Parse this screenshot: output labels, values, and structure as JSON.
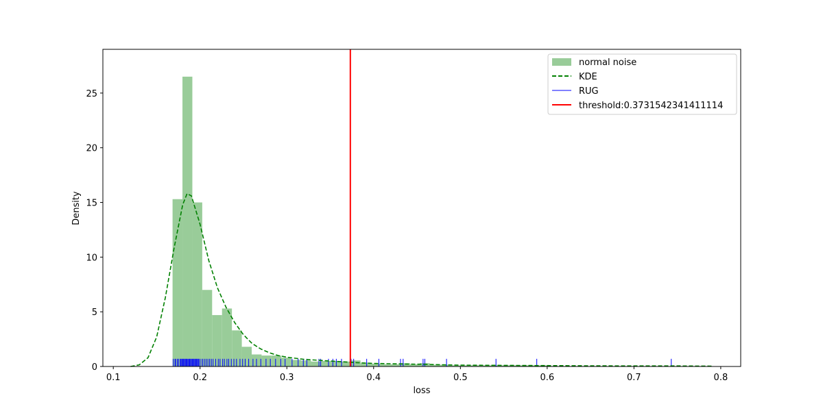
{
  "chart_data": {
    "type": "histogram",
    "xlabel": "loss",
    "ylabel": "Density",
    "xlim": [
      0.088,
      0.823
    ],
    "ylim": [
      0,
      29
    ],
    "x_ticks": [
      0.1,
      0.2,
      0.3,
      0.4,
      0.5,
      0.6,
      0.7,
      0.8
    ],
    "x_tick_labels": [
      "0.1",
      "0.2",
      "0.3",
      "0.4",
      "0.5",
      "0.6",
      "0.7",
      "0.8"
    ],
    "y_ticks": [
      0,
      5,
      10,
      15,
      20,
      25
    ],
    "y_tick_labels": [
      "0",
      "5",
      "10",
      "15",
      "20",
      "25"
    ],
    "grid": false,
    "legend_position": "upper-right",
    "histogram": {
      "name": "normal noise",
      "color": "#99cc99",
      "bin_width": 0.0114,
      "bins": [
        {
          "x0": 0.1683,
          "height": 15.3
        },
        {
          "x0": 0.1797,
          "height": 26.5
        },
        {
          "x0": 0.1911,
          "height": 15.0
        },
        {
          "x0": 0.2025,
          "height": 7.0
        },
        {
          "x0": 0.2139,
          "height": 4.7
        },
        {
          "x0": 0.2253,
          "height": 5.3
        },
        {
          "x0": 0.2367,
          "height": 3.3
        },
        {
          "x0": 0.2481,
          "height": 1.8
        },
        {
          "x0": 0.2595,
          "height": 1.1
        },
        {
          "x0": 0.2709,
          "height": 1.0
        },
        {
          "x0": 0.2823,
          "height": 1.0
        },
        {
          "x0": 0.2937,
          "height": 0.8
        },
        {
          "x0": 0.3051,
          "height": 0.6
        },
        {
          "x0": 0.3165,
          "height": 0.55
        },
        {
          "x0": 0.3279,
          "height": 0.45
        },
        {
          "x0": 0.3393,
          "height": 0.5
        },
        {
          "x0": 0.3507,
          "height": 0.5
        },
        {
          "x0": 0.3621,
          "height": 0.45
        },
        {
          "x0": 0.3735,
          "height": 0.55
        },
        {
          "x0": 0.3849,
          "height": 0.35
        },
        {
          "x0": 0.3963,
          "height": 0.25
        },
        {
          "x0": 0.4077,
          "height": 0.2
        },
        {
          "x0": 0.4191,
          "height": 0.2
        },
        {
          "x0": 0.4305,
          "height": 0.3
        },
        {
          "x0": 0.4419,
          "height": 0.2
        },
        {
          "x0": 0.4533,
          "height": 0.3
        },
        {
          "x0": 0.4647,
          "height": 0.15
        },
        {
          "x0": 0.4761,
          "height": 0.15
        },
        {
          "x0": 0.4875,
          "height": 0.1
        },
        {
          "x0": 0.4989,
          "height": 0.1
        },
        {
          "x0": 0.5103,
          "height": 0.1
        },
        {
          "x0": 0.5217,
          "height": 0.1
        },
        {
          "x0": 0.5331,
          "height": 0.1
        },
        {
          "x0": 0.5445,
          "height": 0.1
        },
        {
          "x0": 0.5559,
          "height": 0.1
        },
        {
          "x0": 0.5673,
          "height": 0.1
        },
        {
          "x0": 0.5787,
          "height": 0.1
        },
        {
          "x0": 0.5901,
          "height": 0.1
        }
      ]
    },
    "kde": {
      "name": "KDE",
      "color": "#008000",
      "points": [
        [
          0.12,
          0.0
        ],
        [
          0.13,
          0.15
        ],
        [
          0.14,
          0.8
        ],
        [
          0.15,
          2.7
        ],
        [
          0.16,
          6.3
        ],
        [
          0.17,
          10.8
        ],
        [
          0.18,
          14.8
        ],
        [
          0.185,
          15.8
        ],
        [
          0.19,
          15.6
        ],
        [
          0.2,
          13.0
        ],
        [
          0.21,
          9.7
        ],
        [
          0.22,
          7.2
        ],
        [
          0.23,
          5.4
        ],
        [
          0.24,
          4.0
        ],
        [
          0.25,
          2.9
        ],
        [
          0.26,
          2.1
        ],
        [
          0.27,
          1.6
        ],
        [
          0.28,
          1.25
        ],
        [
          0.29,
          1.0
        ],
        [
          0.3,
          0.85
        ],
        [
          0.32,
          0.65
        ],
        [
          0.34,
          0.55
        ],
        [
          0.36,
          0.45
        ],
        [
          0.38,
          0.35
        ],
        [
          0.4,
          0.28
        ],
        [
          0.42,
          0.25
        ],
        [
          0.44,
          0.22
        ],
        [
          0.46,
          0.2
        ],
        [
          0.48,
          0.15
        ],
        [
          0.5,
          0.12
        ],
        [
          0.55,
          0.1
        ],
        [
          0.6,
          0.08
        ],
        [
          0.65,
          0.06
        ],
        [
          0.7,
          0.05
        ],
        [
          0.75,
          0.05
        ],
        [
          0.79,
          0.03
        ]
      ]
    },
    "rug": {
      "name": "RUG",
      "color": "#0000ff",
      "height": 0.7,
      "values": [
        0.169,
        0.171,
        0.172,
        0.174,
        0.175,
        0.177,
        0.178,
        0.179,
        0.18,
        0.181,
        0.182,
        0.183,
        0.184,
        0.185,
        0.186,
        0.187,
        0.188,
        0.189,
        0.19,
        0.191,
        0.192,
        0.193,
        0.194,
        0.195,
        0.196,
        0.197,
        0.198,
        0.199,
        0.201,
        0.203,
        0.205,
        0.207,
        0.209,
        0.211,
        0.213,
        0.215,
        0.218,
        0.221,
        0.223,
        0.226,
        0.228,
        0.231,
        0.233,
        0.236,
        0.239,
        0.242,
        0.246,
        0.249,
        0.252,
        0.256,
        0.261,
        0.265,
        0.27,
        0.276,
        0.281,
        0.287,
        0.293,
        0.298,
        0.306,
        0.313,
        0.319,
        0.323,
        0.337,
        0.339,
        0.348,
        0.353,
        0.357,
        0.363,
        0.374,
        0.377,
        0.392,
        0.406,
        0.431,
        0.434,
        0.457,
        0.459,
        0.484,
        0.541,
        0.588,
        0.743
      ]
    },
    "threshold": {
      "name": "threshold:0.3731542341411114",
      "value": 0.3731542341411114,
      "color": "#ff0000"
    }
  }
}
